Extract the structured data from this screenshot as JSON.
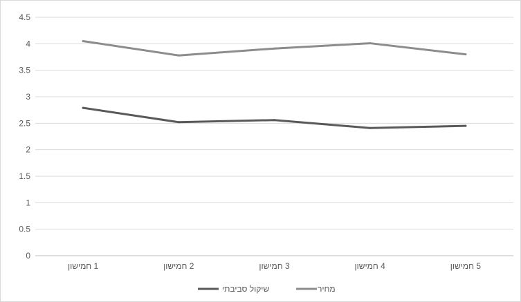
{
  "chart_data": {
    "type": "line",
    "title": "",
    "xlabel": "",
    "ylabel": "",
    "categories": [
      "1 חמישון",
      "2 חמישון",
      "3 חמישון",
      "4 חמישון",
      "5 חמישון"
    ],
    "series": [
      {
        "name": "שיקול סביבתי",
        "values": [
          2.79,
          2.52,
          2.56,
          2.41,
          2.45
        ],
        "color": "#595959"
      },
      {
        "name": "מחיר",
        "values": [
          4.05,
          3.78,
          3.91,
          4.01,
          3.8
        ],
        "color": "#8c8c8c"
      }
    ],
    "ylim": [
      0,
      4.5
    ],
    "yticks": [
      "0",
      "0.5",
      "1",
      "1.5",
      "2",
      "2.5",
      "3",
      "3.5",
      "4",
      "4.5"
    ],
    "grid": true,
    "legend_position": "bottom"
  }
}
